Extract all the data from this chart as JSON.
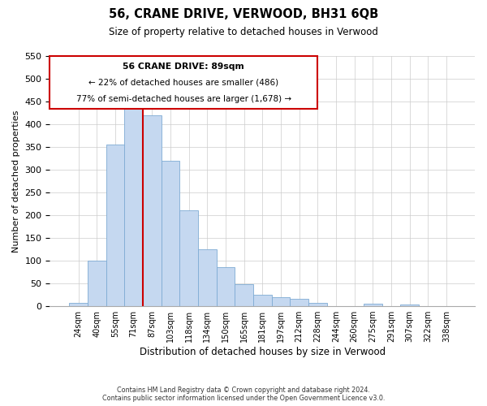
{
  "title": "56, CRANE DRIVE, VERWOOD, BH31 6QB",
  "subtitle": "Size of property relative to detached houses in Verwood",
  "xlabel": "Distribution of detached houses by size in Verwood",
  "ylabel": "Number of detached properties",
  "bar_color": "#c5d8f0",
  "bar_edgecolor": "#7eabd4",
  "bin_labels": [
    "24sqm",
    "40sqm",
    "55sqm",
    "71sqm",
    "87sqm",
    "103sqm",
    "118sqm",
    "134sqm",
    "150sqm",
    "165sqm",
    "181sqm",
    "197sqm",
    "212sqm",
    "228sqm",
    "244sqm",
    "260sqm",
    "275sqm",
    "291sqm",
    "307sqm",
    "322sqm",
    "338sqm"
  ],
  "bin_values": [
    7,
    100,
    355,
    445,
    420,
    320,
    210,
    125,
    85,
    48,
    25,
    20,
    17,
    8,
    0,
    0,
    5,
    0,
    3,
    0,
    0
  ],
  "ylim": [
    0,
    550
  ],
  "yticks": [
    0,
    50,
    100,
    150,
    200,
    250,
    300,
    350,
    400,
    450,
    500,
    550
  ],
  "red_line_index": 4,
  "annotation_title": "56 CRANE DRIVE: 89sqm",
  "annotation_line1": "← 22% of detached houses are smaller (486)",
  "annotation_line2": "77% of semi-detached houses are larger (1,678) →",
  "footer1": "Contains HM Land Registry data © Crown copyright and database right 2024.",
  "footer2": "Contains public sector information licensed under the Open Government Licence v3.0.",
  "background_color": "#ffffff",
  "grid_color": "#cccccc",
  "annotation_box_edgecolor": "#cc0000",
  "red_line_color": "#cc0000"
}
